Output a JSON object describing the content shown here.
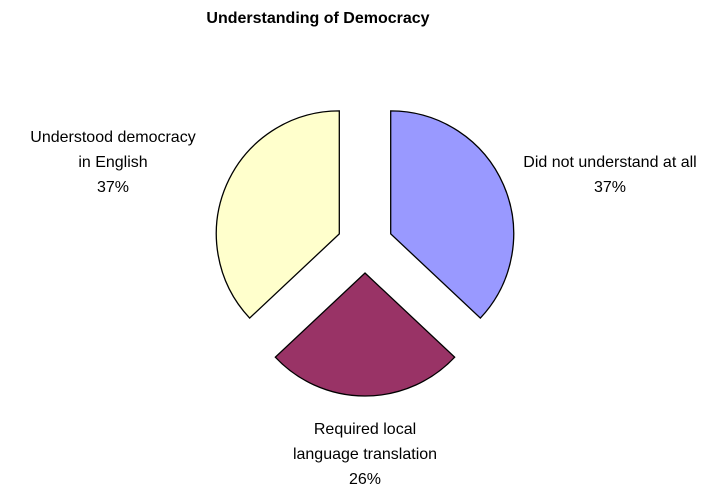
{
  "chart_data": {
    "type": "pie",
    "title": "Understanding of Democracy",
    "categories": [
      "Did not understand at all",
      "Required local language translation",
      "Understood democracy in English"
    ],
    "values": [
      37,
      26,
      37
    ],
    "value_labels": [
      "37%",
      "26%",
      "37%"
    ],
    "colors": [
      "#9999ff",
      "#993366",
      "#ffffcc"
    ],
    "exploded": true
  }
}
